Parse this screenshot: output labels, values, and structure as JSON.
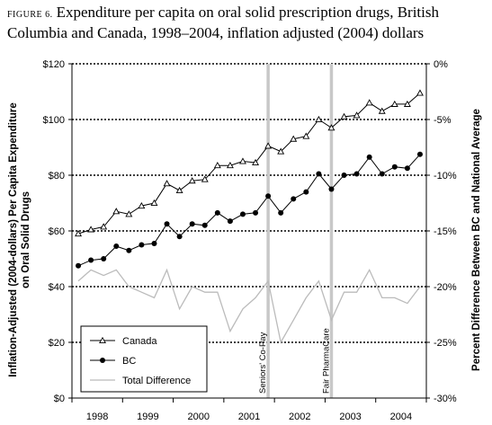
{
  "figure": {
    "label": "FIGURE 6.",
    "title": "Expenditure per capita on oral solid prescription drugs, British Columbia and Canada, 1998–2004, inflation adjusted (2004) dollars"
  },
  "chart_data": {
    "type": "line",
    "xlabel": "",
    "ylabel": "Inflation-Adjusted (2004-dollars) Per Capita Expenditure on Oral Solid Drugs",
    "y2label": "Percent Difference Between BC and National Average",
    "x_tick_labels": [
      "1998",
      "1999",
      "2000",
      "2001",
      "2002",
      "2003",
      "2004"
    ],
    "y_tick_labels": [
      "$0",
      "$20",
      "$40",
      "$60",
      "$80",
      "$100",
      "$120"
    ],
    "y2_tick_labels": [
      "-30%",
      "-25%",
      "-20%",
      "-15%",
      "-10%",
      "-5%",
      "0%"
    ],
    "ylim": [
      0,
      120
    ],
    "y2lim": [
      -30,
      0
    ],
    "x_range": [
      0,
      28
    ],
    "grid": "horizontal dotted",
    "legend_position": "bottom-left",
    "x": [
      0,
      1,
      2,
      3,
      4,
      5,
      6,
      7,
      8,
      9,
      10,
      11,
      12,
      13,
      14,
      15,
      16,
      17,
      18,
      19,
      20,
      21,
      22,
      23,
      24,
      25,
      26,
      27
    ],
    "series": [
      {
        "name": "Canada",
        "axis": "left",
        "marker": "triangle",
        "color": "#000000",
        "values": [
          59,
          60.5,
          61.5,
          67,
          66,
          69,
          70,
          77,
          74.5,
          78,
          78.5,
          83.5,
          83.5,
          85,
          84.5,
          90.5,
          88.5,
          93,
          94,
          100,
          97,
          101,
          101.5,
          106,
          103,
          105.5,
          105.5,
          109.5
        ]
      },
      {
        "name": "BC",
        "axis": "left",
        "marker": "circle",
        "color": "#000000",
        "values": [
          47.5,
          49.5,
          50,
          54.5,
          53,
          55,
          55.5,
          62.5,
          58,
          62.5,
          62,
          66.5,
          63.5,
          66,
          66.5,
          72.5,
          66.5,
          71.5,
          74,
          80.5,
          75,
          80,
          80.5,
          86.5,
          80.5,
          83,
          82.5,
          87.5
        ]
      },
      {
        "name": "Total Difference",
        "axis": "right",
        "marker": "none",
        "color": "#bbbbbb",
        "values": [
          -19.5,
          -18.5,
          -19,
          -18.5,
          -20,
          -20.5,
          -21,
          -18.5,
          -22,
          -20,
          -20.5,
          -20.5,
          -24,
          -22,
          -21,
          -19.5,
          -25,
          -23,
          -21,
          -19.5,
          -23,
          -20.5,
          -20.5,
          -18.5,
          -21,
          -21,
          -21.5,
          -20
        ]
      }
    ],
    "annotations": [
      {
        "label": "Seniors' Co-Pay",
        "x": 15.5,
        "color": "#c8c8c8"
      },
      {
        "label": "Fair PharmaCare",
        "x": 20.5,
        "color": "#c8c8c8"
      }
    ]
  }
}
